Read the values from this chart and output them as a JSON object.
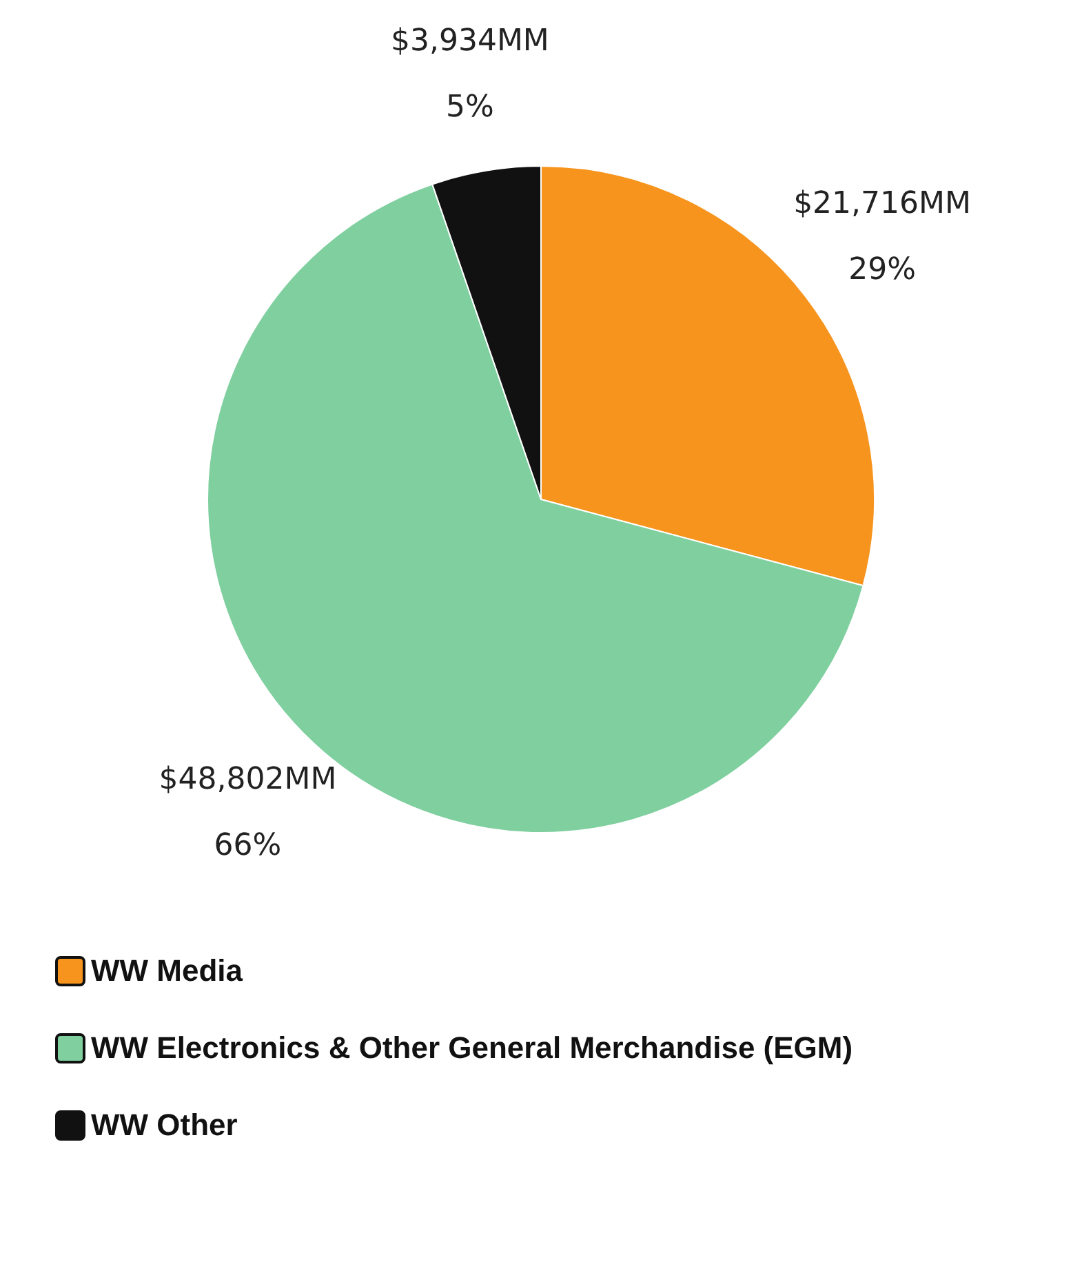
{
  "chart_data": {
    "type": "pie",
    "categories": [
      "WW Media",
      "WW Electronics & Other General Merchandise (EGM)",
      "WW Other"
    ],
    "values": [
      21716,
      48802,
      3934
    ],
    "colors": [
      "#f7941d",
      "#7fcf9f",
      "#111111"
    ],
    "value_labels": [
      "$21,716MM\n29%",
      "$48,802MM\n66%",
      "$3,934MM\n5%"
    ],
    "legend": "bottom"
  }
}
